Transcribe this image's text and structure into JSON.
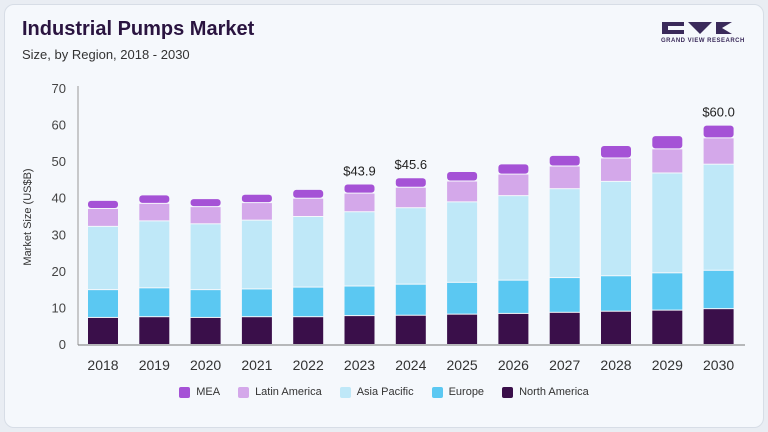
{
  "header": {
    "title": "Industrial Pumps Market",
    "subtitle": "Size, by Region, 2018 - 2030",
    "logo_text": "GRAND VIEW RESEARCH"
  },
  "chart_data": {
    "type": "bar",
    "stacked": true,
    "ylabel": "Market Size (US$B)",
    "xlabel": "",
    "ylim": [
      0,
      70
    ],
    "yticks": [
      0,
      10,
      20,
      30,
      40,
      50,
      60,
      70
    ],
    "grid": false,
    "legend_placement": "bottom",
    "categories": [
      "2018",
      "2019",
      "2020",
      "2021",
      "2022",
      "2023",
      "2024",
      "2025",
      "2026",
      "2027",
      "2028",
      "2029",
      "2030"
    ],
    "series": [
      {
        "name": "North America",
        "color": "#3a0f4a",
        "values": [
          7.4,
          7.6,
          7.4,
          7.6,
          7.6,
          7.9,
          8.0,
          8.3,
          8.5,
          8.8,
          9.1,
          9.4,
          9.8
        ]
      },
      {
        "name": "Europe",
        "color": "#5bc8f2",
        "values": [
          7.6,
          7.9,
          7.6,
          7.6,
          8.1,
          8.1,
          8.5,
          8.7,
          9.1,
          9.5,
          9.7,
          10.2,
          10.5
        ]
      },
      {
        "name": "Asia Pacific",
        "color": "#bfe8f8",
        "values": [
          17.3,
          18.3,
          18.0,
          18.8,
          19.3,
          20.3,
          20.9,
          22.0,
          23.1,
          24.3,
          25.8,
          27.3,
          29.0
        ]
      },
      {
        "name": "Latin America",
        "color": "#d4a8ea",
        "values": [
          4.9,
          4.8,
          4.7,
          4.8,
          5.0,
          5.1,
          5.6,
          5.7,
          5.9,
          6.2,
          6.4,
          6.6,
          7.2
        ]
      },
      {
        "name": "MEA",
        "color": "#a552d6",
        "values": [
          2.2,
          2.3,
          2.2,
          2.3,
          2.4,
          2.5,
          2.6,
          2.6,
          2.8,
          2.9,
          3.4,
          3.6,
          3.5
        ]
      }
    ],
    "annotations": [
      {
        "category": "2023",
        "label": "$43.9"
      },
      {
        "category": "2024",
        "label": "$45.6"
      },
      {
        "category": "2030",
        "label": "$60.0"
      }
    ],
    "legend_order": [
      "MEA",
      "Latin America",
      "Asia Pacific",
      "Europe",
      "North America"
    ]
  }
}
